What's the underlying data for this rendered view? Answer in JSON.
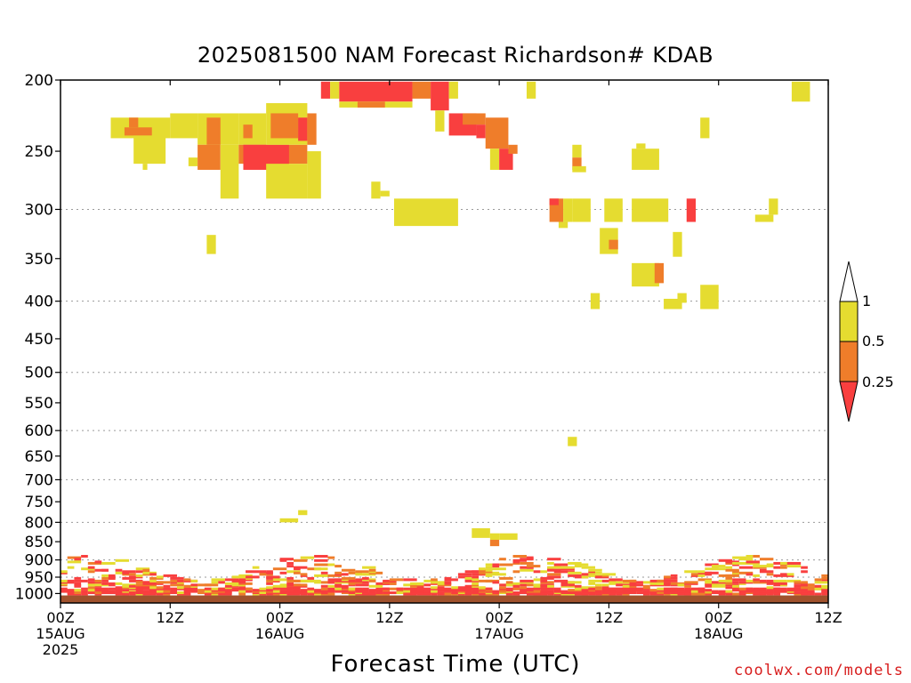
{
  "title": "2025081500 NAM Forecast Richardson# KDAB",
  "credit": "coolwx.com/models",
  "colors": {
    "red": "#f93f3f",
    "orange": "#ef7d2a",
    "yellow": "#e5dc30",
    "ground": "#a0522d",
    "grid": "#9a9a9a"
  },
  "chart_data": {
    "type": "heatmap",
    "title": "2025081500 NAM Forecast Richardson# KDAB",
    "xlabel": "Forecast Time (UTC)",
    "ylabel": "",
    "x_unit": "forecast hour",
    "xlim": [
      0,
      84
    ],
    "ylim": [
      1030,
      200
    ],
    "y_scale": "log-pressure",
    "grid": "dotted horizontal at 300, 400, 500, 600, 700, 800, 900, 950",
    "y_ticks": [
      200,
      250,
      300,
      350,
      400,
      450,
      500,
      550,
      600,
      650,
      700,
      750,
      800,
      850,
      900,
      950,
      1000
    ],
    "x_ticks": [
      {
        "hour": 0,
        "lines": [
          "00Z",
          "15AUG",
          "2025"
        ]
      },
      {
        "hour": 12,
        "lines": [
          "12Z"
        ]
      },
      {
        "hour": 24,
        "lines": [
          "00Z",
          "16AUG"
        ]
      },
      {
        "hour": 36,
        "lines": [
          "12Z"
        ]
      },
      {
        "hour": 48,
        "lines": [
          "00Z",
          "17AUG"
        ]
      },
      {
        "hour": 60,
        "lines": [
          "12Z"
        ]
      },
      {
        "hour": 72,
        "lines": [
          "00Z",
          "18AUG"
        ]
      },
      {
        "hour": 84,
        "lines": [
          "12Z"
        ]
      }
    ],
    "legend": {
      "placement": "right",
      "levels": [
        "1",
        "0.5",
        "0.25"
      ],
      "bins": [
        {
          "range": "< 0.25",
          "color": "red"
        },
        {
          "range": "0.25 - 0.5",
          "color": "orange"
        },
        {
          "range": "0.5 - 1",
          "color": "yellow"
        },
        {
          "range": "> 1",
          "color": "white"
        }
      ]
    },
    "cells": [
      {
        "t0": 5.5,
        "t1": 12,
        "p0": 225,
        "p1": 240,
        "c": "yellow"
      },
      {
        "t0": 7,
        "t1": 10,
        "p0": 232,
        "p1": 238,
        "c": "orange"
      },
      {
        "t0": 7.5,
        "t1": 8.5,
        "p0": 225,
        "p1": 232,
        "c": "orange"
      },
      {
        "t0": 8,
        "t1": 11.5,
        "p0": 238,
        "p1": 260,
        "c": "yellow"
      },
      {
        "t0": 9,
        "t1": 9.5,
        "p0": 260,
        "p1": 265,
        "c": "yellow"
      },
      {
        "t0": 12,
        "t1": 15,
        "p0": 222,
        "p1": 240,
        "c": "yellow"
      },
      {
        "t0": 14,
        "t1": 15,
        "p0": 255,
        "p1": 262,
        "c": "yellow"
      },
      {
        "t0": 15,
        "t1": 19.5,
        "p0": 222,
        "p1": 245,
        "c": "yellow"
      },
      {
        "t0": 16,
        "t1": 17.5,
        "p0": 225,
        "p1": 245,
        "c": "orange"
      },
      {
        "t0": 15,
        "t1": 17.5,
        "p0": 245,
        "p1": 265,
        "c": "orange"
      },
      {
        "t0": 17.5,
        "t1": 19.5,
        "p0": 245,
        "p1": 290,
        "c": "yellow"
      },
      {
        "t0": 19.5,
        "t1": 22.5,
        "p0": 222,
        "p1": 245,
        "c": "yellow"
      },
      {
        "t0": 20,
        "t1": 21,
        "p0": 230,
        "p1": 240,
        "c": "orange"
      },
      {
        "t0": 19.5,
        "t1": 27,
        "p0": 245,
        "p1": 260,
        "c": "orange"
      },
      {
        "t0": 20,
        "t1": 25,
        "p0": 245,
        "p1": 265,
        "c": "red"
      },
      {
        "t0": 25,
        "t1": 26,
        "p0": 262,
        "p1": 267,
        "c": "red"
      },
      {
        "t0": 22.5,
        "t1": 27,
        "p0": 215,
        "p1": 245,
        "c": "yellow"
      },
      {
        "t0": 23,
        "t1": 26,
        "p0": 222,
        "p1": 240,
        "c": "orange"
      },
      {
        "t0": 26,
        "t1": 27,
        "p0": 225,
        "p1": 242,
        "c": "red"
      },
      {
        "t0": 27,
        "t1": 28,
        "p0": 222,
        "p1": 245,
        "c": "orange"
      },
      {
        "t0": 22.5,
        "t1": 27,
        "p0": 260,
        "p1": 290,
        "c": "yellow"
      },
      {
        "t0": 27,
        "t1": 28.5,
        "p0": 250,
        "p1": 290,
        "c": "yellow"
      },
      {
        "t0": 16,
        "t1": 17,
        "p0": 325,
        "p1": 345,
        "c": "yellow"
      },
      {
        "t0": 28.5,
        "t1": 29.5,
        "p0": 201,
        "p1": 212,
        "c": "red"
      },
      {
        "t0": 29.5,
        "t1": 30.5,
        "p0": 201,
        "p1": 212,
        "c": "yellow"
      },
      {
        "t0": 30.5,
        "t1": 38.5,
        "p0": 201,
        "p1": 214,
        "c": "red"
      },
      {
        "t0": 30.5,
        "t1": 38.5,
        "p0": 214,
        "p1": 218,
        "c": "yellow"
      },
      {
        "t0": 32.5,
        "t1": 35.5,
        "p0": 214,
        "p1": 218,
        "c": "orange"
      },
      {
        "t0": 38.5,
        "t1": 40.5,
        "p0": 201,
        "p1": 212,
        "c": "orange"
      },
      {
        "t0": 40.5,
        "t1": 42.5,
        "p0": 201,
        "p1": 220,
        "c": "red"
      },
      {
        "t0": 42.5,
        "t1": 43.5,
        "p0": 201,
        "p1": 212,
        "c": "yellow"
      },
      {
        "t0": 41,
        "t1": 42,
        "p0": 220,
        "p1": 235,
        "c": "yellow"
      },
      {
        "t0": 42.5,
        "t1": 45.5,
        "p0": 222,
        "p1": 238,
        "c": "red"
      },
      {
        "t0": 44,
        "t1": 46.5,
        "p0": 222,
        "p1": 230,
        "c": "orange"
      },
      {
        "t0": 45.5,
        "t1": 46.5,
        "p0": 230,
        "p1": 240,
        "c": "red"
      },
      {
        "t0": 46.5,
        "t1": 49,
        "p0": 225,
        "p1": 248,
        "c": "orange"
      },
      {
        "t0": 47,
        "t1": 48,
        "p0": 248,
        "p1": 265,
        "c": "yellow"
      },
      {
        "t0": 48,
        "t1": 49.5,
        "p0": 248,
        "p1": 265,
        "c": "red"
      },
      {
        "t0": 49,
        "t1": 50,
        "p0": 245,
        "p1": 252,
        "c": "orange"
      },
      {
        "t0": 51,
        "t1": 52,
        "p0": 201,
        "p1": 212,
        "c": "yellow"
      },
      {
        "t0": 34,
        "t1": 35,
        "p0": 275,
        "p1": 290,
        "c": "yellow"
      },
      {
        "t0": 35,
        "t1": 36,
        "p0": 283,
        "p1": 288,
        "c": "yellow"
      },
      {
        "t0": 36.5,
        "t1": 43.5,
        "p0": 290,
        "p1": 316,
        "c": "yellow"
      },
      {
        "t0": 56,
        "t1": 57,
        "p0": 245,
        "p1": 255,
        "c": "yellow"
      },
      {
        "t0": 56,
        "t1": 57,
        "p0": 255,
        "p1": 265,
        "c": "orange"
      },
      {
        "t0": 56,
        "t1": 57.5,
        "p0": 262,
        "p1": 267,
        "c": "yellow"
      },
      {
        "t0": 62.5,
        "t1": 65.5,
        "p0": 248,
        "p1": 265,
        "c": "yellow"
      },
      {
        "t0": 63,
        "t1": 64,
        "p0": 244,
        "p1": 248,
        "c": "yellow"
      },
      {
        "t0": 70,
        "t1": 71,
        "p0": 225,
        "p1": 240,
        "c": "yellow"
      },
      {
        "t0": 80,
        "t1": 82,
        "p0": 201,
        "p1": 214,
        "c": "yellow"
      },
      {
        "t0": 53.5,
        "t1": 55,
        "p0": 290,
        "p1": 312,
        "c": "orange"
      },
      {
        "t0": 53.5,
        "t1": 54.5,
        "p0": 290,
        "p1": 296,
        "c": "red"
      },
      {
        "t0": 55,
        "t1": 56,
        "p0": 290,
        "p1": 312,
        "c": "yellow"
      },
      {
        "t0": 54.5,
        "t1": 55.5,
        "p0": 312,
        "p1": 318,
        "c": "yellow"
      },
      {
        "t0": 56,
        "t1": 58,
        "p0": 290,
        "p1": 312,
        "c": "yellow"
      },
      {
        "t0": 59.5,
        "t1": 61.5,
        "p0": 290,
        "p1": 312,
        "c": "yellow"
      },
      {
        "t0": 62.5,
        "t1": 66.5,
        "p0": 290,
        "p1": 312,
        "c": "yellow"
      },
      {
        "t0": 68.5,
        "t1": 69.5,
        "p0": 290,
        "p1": 312,
        "c": "red"
      },
      {
        "t0": 76,
        "t1": 78,
        "p0": 305,
        "p1": 312,
        "c": "yellow"
      },
      {
        "t0": 77.5,
        "t1": 78.5,
        "p0": 290,
        "p1": 305,
        "c": "yellow"
      },
      {
        "t0": 59,
        "t1": 61,
        "p0": 318,
        "p1": 345,
        "c": "yellow"
      },
      {
        "t0": 60,
        "t1": 61,
        "p0": 330,
        "p1": 340,
        "c": "orange"
      },
      {
        "t0": 67,
        "t1": 68,
        "p0": 322,
        "p1": 348,
        "c": "yellow"
      },
      {
        "t0": 62.5,
        "t1": 65.5,
        "p0": 355,
        "p1": 382,
        "c": "yellow"
      },
      {
        "t0": 65,
        "t1": 66,
        "p0": 355,
        "p1": 378,
        "c": "orange"
      },
      {
        "t0": 58,
        "t1": 59,
        "p0": 390,
        "p1": 410,
        "c": "yellow"
      },
      {
        "t0": 66,
        "t1": 68,
        "p0": 397,
        "p1": 410,
        "c": "yellow"
      },
      {
        "t0": 67.5,
        "t1": 68.5,
        "p0": 390,
        "p1": 402,
        "c": "yellow"
      },
      {
        "t0": 70,
        "t1": 72,
        "p0": 380,
        "p1": 410,
        "c": "yellow"
      },
      {
        "t0": 55.5,
        "t1": 56.5,
        "p0": 612,
        "p1": 630,
        "c": "yellow"
      },
      {
        "t0": 24,
        "t1": 26,
        "p0": 790,
        "p1": 800,
        "c": "yellow"
      },
      {
        "t0": 26,
        "t1": 27,
        "p0": 770,
        "p1": 782,
        "c": "yellow"
      },
      {
        "t0": 45,
        "t1": 47,
        "p0": 815,
        "p1": 840,
        "c": "yellow"
      },
      {
        "t0": 47,
        "t1": 48,
        "p0": 828,
        "p1": 845,
        "c": "yellow"
      },
      {
        "t0": 47,
        "t1": 48,
        "p0": 845,
        "p1": 862,
        "c": "orange"
      },
      {
        "t0": 48,
        "t1": 50,
        "p0": 828,
        "p1": 845,
        "c": "yellow"
      },
      {
        "t0": 0,
        "t1": 84,
        "p0": 1006,
        "p1": 1030,
        "c": "ground"
      }
    ]
  }
}
